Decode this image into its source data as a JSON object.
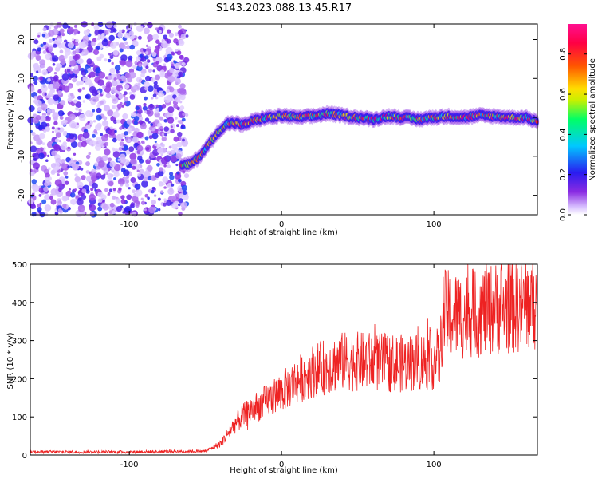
{
  "figure": {
    "title": "S143.2023.088.13.45.R17"
  },
  "colorbar": {
    "label": "Normalized spectral amplitude",
    "ticks": [
      "0.0",
      "0.2",
      "0.4",
      "0.6",
      "0.8"
    ]
  },
  "chart_data": [
    {
      "type": "heatmap",
      "title": "S143.2023.088.13.45.R17",
      "xlabel": "Height of straight line (km)",
      "ylabel": "Frequency (Hz)",
      "xlim": [
        -165,
        168
      ],
      "ylim": [
        -25,
        24
      ],
      "xticks": [
        "-100",
        "0",
        "100"
      ],
      "yticks": [
        "-20",
        "-10",
        "0",
        "10",
        "20"
      ],
      "zlim": [
        0,
        0.95
      ],
      "colormap": "rainbow (purple-blue-cyan-green-yellow-red-magenta)",
      "ridge": {
        "x": [
          -66,
          -60,
          -55,
          -50,
          -45,
          -40,
          -35,
          -30,
          -25,
          -20,
          -15,
          -10,
          -5,
          0,
          10,
          20,
          30,
          40,
          50,
          60,
          70,
          80,
          90,
          100,
          110,
          120,
          130,
          140,
          150,
          160,
          168
        ],
        "frequency": [
          -12.5,
          -12,
          -10.5,
          -8,
          -5.5,
          -3,
          -1.5,
          -1.5,
          -2,
          -1,
          -0.5,
          0,
          0,
          0.5,
          0,
          0.3,
          1,
          0.5,
          0,
          -0.5,
          0.3,
          0,
          -0.5,
          0,
          0.3,
          0,
          0.5,
          0.3,
          0,
          0,
          -1
        ]
      },
      "noise_region_x": [
        -165,
        -62
      ]
    },
    {
      "type": "line",
      "xlabel": "Height of straight line (km)",
      "ylabel": "SNR (10 * v/v)",
      "xlim": [
        -165,
        168
      ],
      "ylim": [
        0,
        500
      ],
      "xticks": [
        "-100",
        "0",
        "100"
      ],
      "yticks": [
        "0",
        "100",
        "200",
        "300",
        "400",
        "500"
      ],
      "color": "#ee2222",
      "trend": {
        "x": [
          -165,
          -100,
          -50,
          -40,
          -30,
          -20,
          -10,
          0,
          10,
          20,
          40,
          60,
          80,
          100,
          104,
          106,
          120,
          140,
          160,
          168
        ],
        "y": [
          8,
          8,
          10,
          30,
          85,
          120,
          140,
          165,
          195,
          220,
          245,
          245,
          240,
          250,
          255,
          370,
          365,
          385,
          390,
          400
        ]
      }
    }
  ]
}
